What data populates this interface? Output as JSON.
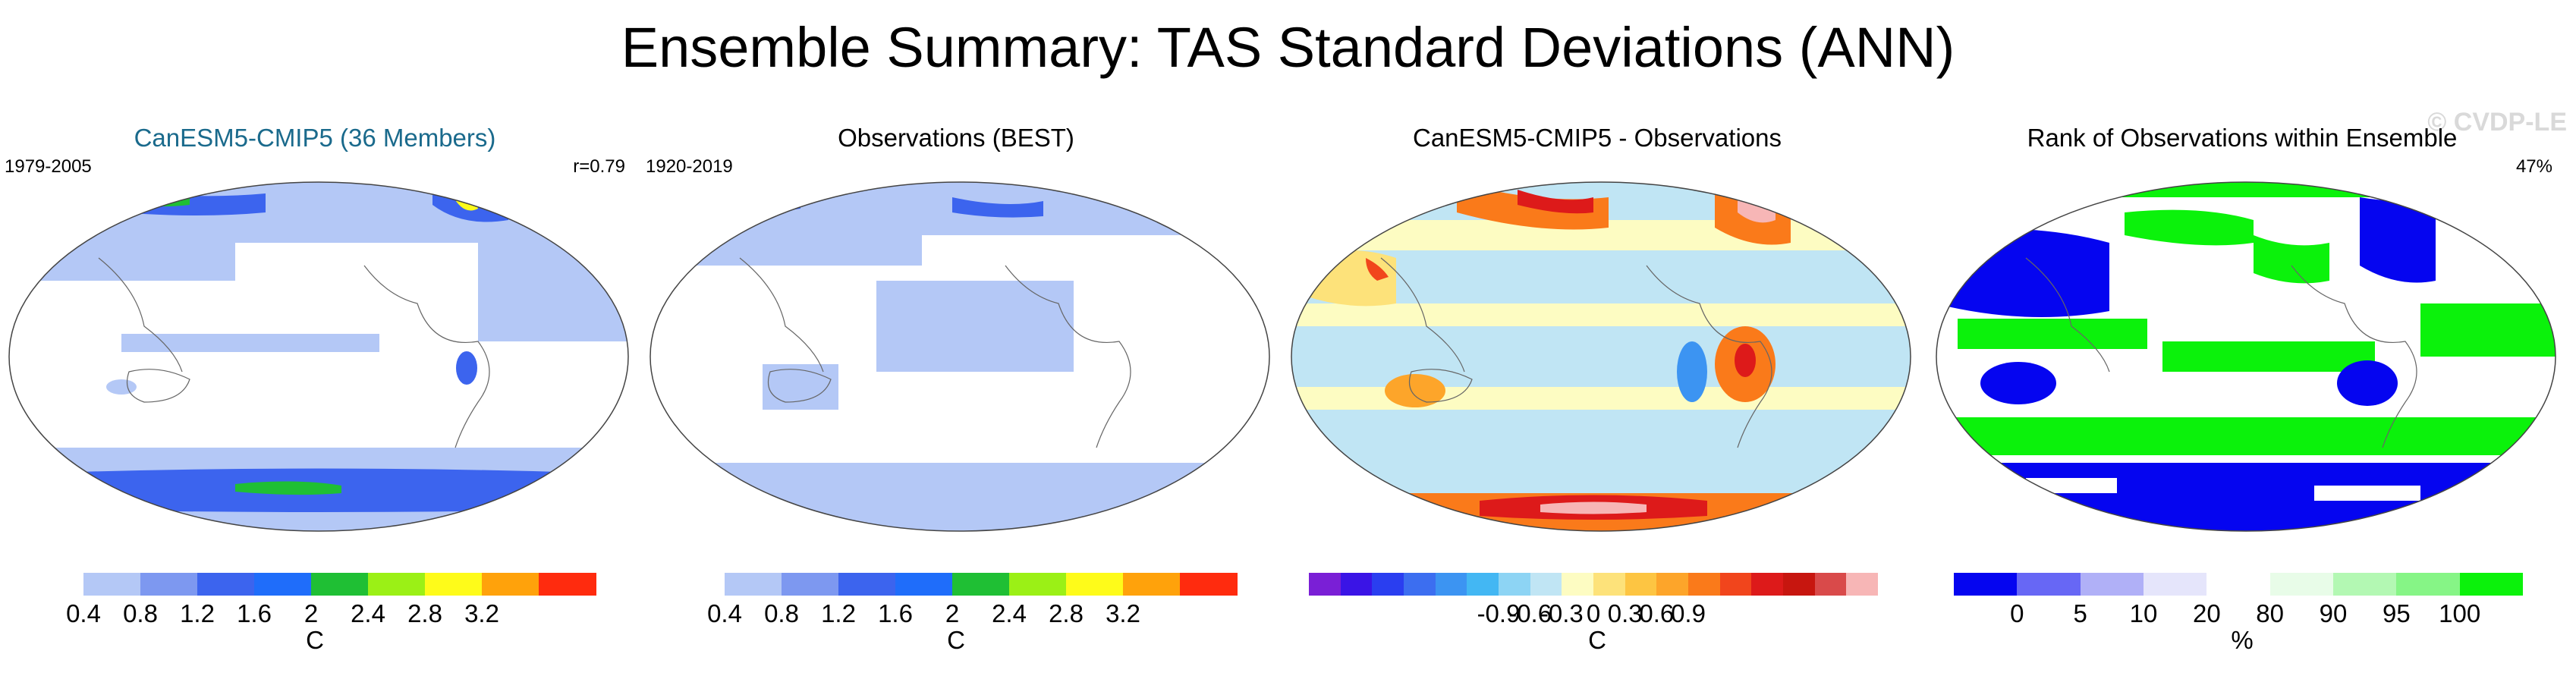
{
  "title": "Ensemble Summary: TAS Standard Deviations (ANN)",
  "watermark": "© CVDP-LE",
  "panels": [
    {
      "title": "CanESM5-CMIP5 (36 Members)",
      "left_label": "1979-2005",
      "right_label": "r=0.79",
      "colorbar": {
        "colors": [
          "#ffffff",
          "#b4c8f6",
          "#7d98f0",
          "#3c64ee",
          "#1f6dfa",
          "#1fbf34",
          "#9bf016",
          "#fefb1a",
          "#ffa20b",
          "#ff2b0e"
        ],
        "ticks": [
          "0.4",
          "0.8",
          "1.2",
          "1.6",
          "2",
          "2.4",
          "2.8",
          "3.2"
        ],
        "unit": "C"
      }
    },
    {
      "title": "Observations (BEST)",
      "left_label": "1920-2019",
      "right_label": "",
      "colorbar": {
        "colors": [
          "#ffffff",
          "#b4c8f6",
          "#7d98f0",
          "#3c64ee",
          "#1f6dfa",
          "#1fbf34",
          "#9bf016",
          "#fefb1a",
          "#ffa20b",
          "#ff2b0e"
        ],
        "ticks": [
          "0.4",
          "0.8",
          "1.2",
          "1.6",
          "2",
          "2.4",
          "2.8",
          "3.2"
        ],
        "unit": "C"
      }
    },
    {
      "title": "CanESM5-CMIP5 - Observations",
      "left_label": "",
      "right_label": "",
      "colorbar": {
        "colors": [
          "#7a1fd6",
          "#3a14e6",
          "#2a3ef0",
          "#3c6ef0",
          "#3c94f2",
          "#43b7f3",
          "#8dd4f4",
          "#c0e5f4",
          "#fdfcc2",
          "#fde27a",
          "#fdc542",
          "#fda52a",
          "#fa7a1a",
          "#f1451c",
          "#dd1a1a",
          "#c7160f",
          "#d94a4a",
          "#f7b6b6"
        ],
        "ticks": [
          "-0.9",
          "-0.6",
          "-0.3",
          "0",
          "0.3",
          "0.6",
          "0.9"
        ],
        "unit": "C"
      }
    },
    {
      "title": "Rank of Observations within Ensemble",
      "left_label": "",
      "right_label": "47%",
      "colorbar": {
        "colors": [
          "#0505f0",
          "#6767f5",
          "#b0b0f7",
          "#e5e5fb",
          "#ffffff",
          "#e8fce8",
          "#b3f8b3",
          "#86f586",
          "#0bf20b"
        ],
        "ticks": [
          "0",
          "5",
          "10",
          "20",
          "80",
          "90",
          "95",
          "100"
        ],
        "unit": "%"
      }
    }
  ]
}
